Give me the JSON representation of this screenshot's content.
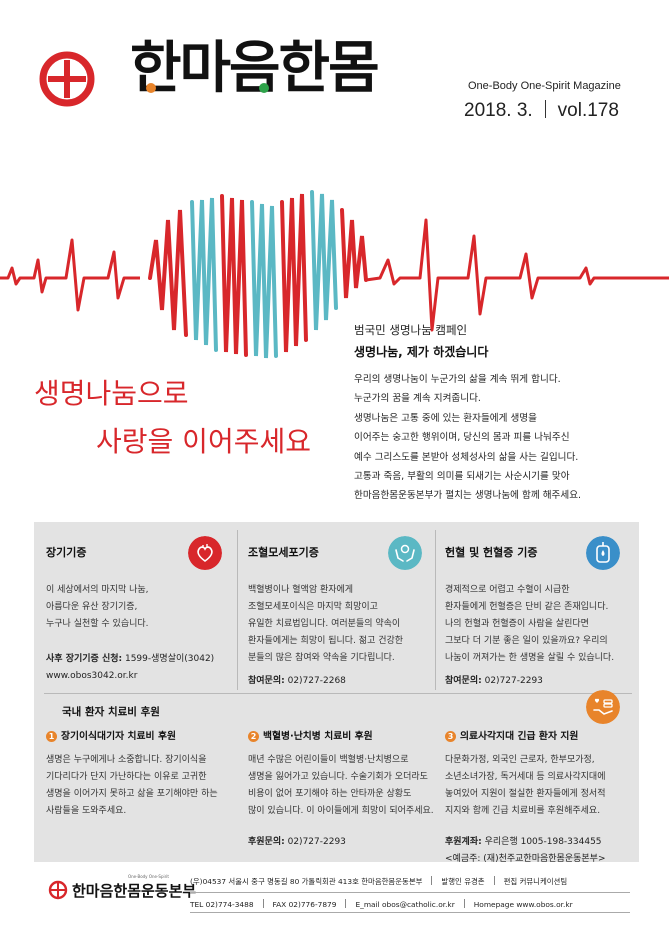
{
  "header": {
    "logo_text": "한마음한몸",
    "magazine_name": "One-Body One-Spirit Magazine",
    "issue_date": "2018. 3.",
    "volume": "vol.178"
  },
  "slogan": {
    "line1": "생명나눔으로",
    "line2": "사랑을 이어주세요"
  },
  "campaign": {
    "subtitle": "범국민 생명나눔 캠페인",
    "title": "생명나눔, 제가 하겠습니다",
    "body": [
      "우리의 생명나눔이 누군가의 삶을 계속 뛰게 합니다.",
      "누군가의 꿈을 계속 지켜줍니다.",
      "생명나눔은 고통 중에 있는 환자들에게 생명을",
      "이어주는 숭고한 행위이며, 당신의 몸과 피를 나눠주신",
      "예수 그리스도를 본받아 성체성사의 삶을 사는 길입니다.",
      "고통과 죽음, 부활의 의미를 되새기는 사순시기를 맞아",
      "한마음한몸운동본부가 펼치는 생명나눔에 함께 해주세요."
    ]
  },
  "donation": [
    {
      "title": "장기기증",
      "icon": "heart-icon",
      "body": [
        "이 세상에서의 마지막 나눔,",
        "아름다운 유산 장기기증,",
        "누구나 실천할 수 있습니다."
      ],
      "foot_label": "사후 장기기증 신청:",
      "foot_value": "1599-생명살이(3042)",
      "foot_extra": "www.obos3042.or.kr"
    },
    {
      "title": "조혈모세포기증",
      "icon": "hands-icon",
      "body": [
        "백혈병이나 혈액암 환자에게",
        "조혈모세포이식은 마지막 희망이고",
        "유일한 치료법입니다. 여러분들의 약속이",
        "환자들에게는 희망이 됩니다. 젊고 건강한",
        "분들의 많은 참여와 약속을 기다립니다."
      ],
      "foot_label": "참여문의:",
      "foot_value": "02)727-2268",
      "foot_extra": ""
    },
    {
      "title": "헌혈 및 헌혈증 기증",
      "icon": "blood-bag-icon",
      "body": [
        "경제적으로 어렵고 수혈이 시급한",
        "환자들에게 헌혈증은 단비 같은 존재입니다.",
        "나의 헌혈과 헌혈증이 사람을 살린다면",
        "그보다 더 기분 좋은 일이 있을까요? 우리의",
        "나눔이 꺼져가는 한 생명을 살릴 수 있습니다."
      ],
      "foot_label": "참여문의:",
      "foot_value": "02)727-2293",
      "foot_extra": ""
    }
  ],
  "support": {
    "title": "국내 환자 치료비 후원",
    "icon": "coin-hand-icon",
    "items": [
      {
        "num": "1",
        "title": "장기이식대기자 치료비 후원",
        "body": [
          "생명은 누구에게나 소중합니다. 장기이식을",
          "기다리다가 단지 가난하다는 이유로 고귀한",
          "생명을 이어가지 못하고 삶을 포기해야만 하는",
          "사람들을 도와주세요."
        ],
        "foot_label": "",
        "foot_value": "",
        "foot_extra": ""
      },
      {
        "num": "2",
        "title": "백혈병·난치병 치료비 후원",
        "body": [
          "매년 수많은 어린이들이 백혈병·난치병으로",
          "생명을 잃어가고 있습니다. 수술기회가 오더라도",
          "비용이 없어 포기해야 하는 안타까운 상황도",
          "많이 있습니다. 이 아이들에게 희망이 되어주세요."
        ],
        "foot_label": "후원문의:",
        "foot_value": "02)727-2293",
        "foot_extra": ""
      },
      {
        "num": "3",
        "title": "의료사각지대 긴급 환자 지원",
        "body": [
          "다문화가정, 외국인 근로자, 한부모가정,",
          "소년소녀가장, 독거세대 등 의료사각지대에",
          "놓여있어 지원이 절실한 환자들에게 정서적",
          "지지와 함께 긴급 치료비를 후원해주세요."
        ],
        "foot_label": "후원계좌:",
        "foot_value": "우리은행 1005-198-334455",
        "foot_extra": "<예금주: (재)천주교한마음한몸운동본부>"
      }
    ]
  },
  "footer": {
    "logo_text": "한마음한몸운동본부",
    "logo_small": "One-Body One-Spirit",
    "address": "(우)04537 서울시 중구 명동길 80 가톨릭회관 413호 한마음한몸운동본부",
    "publisher_label": "발행인",
    "publisher": "유경촌",
    "editor_label": "편집",
    "editor": "커뮤니케이션팀",
    "tel": "TEL  02)774-3488",
    "fax": "FAX  02)776-7879",
    "email": "E_mail  obos@catholic.or.kr",
    "homepage": "Homepage  www.obos.or.kr"
  },
  "colors": {
    "red": "#d8272b",
    "teal": "#5bb8c4",
    "orange": "#e8842b",
    "panel": "#e3e3e3"
  }
}
